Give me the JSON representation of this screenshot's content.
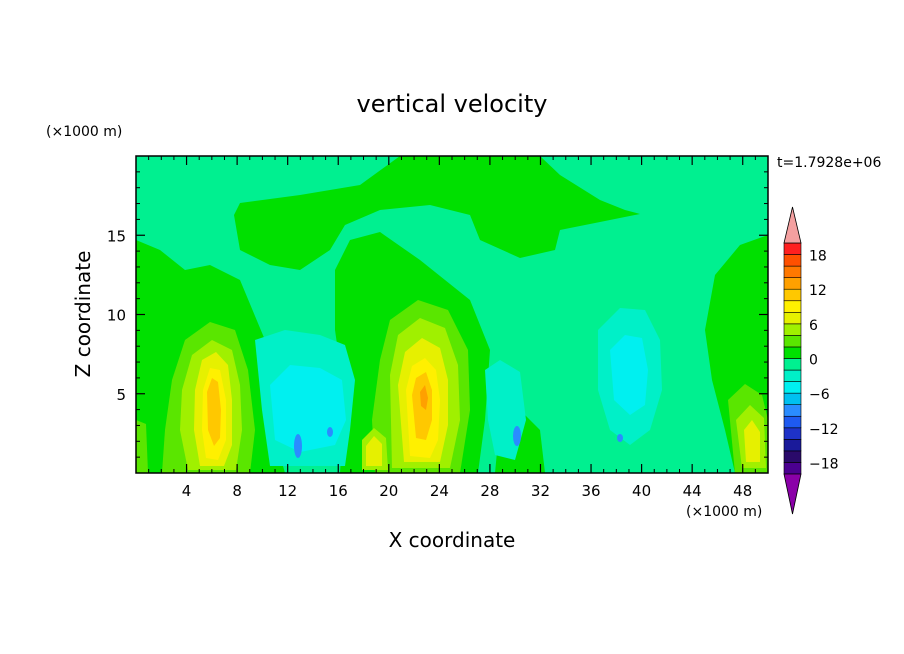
{
  "chart_data": {
    "type": "heatmap",
    "title": "vertical velocity",
    "xlabel": "X coordinate",
    "ylabel": "Z coordinate",
    "x_unit": "(×1000 m)",
    "y_unit": "(×1000 m)",
    "time_label": "t=1.7928e+06",
    "xlim": [
      0,
      50
    ],
    "ylim": [
      0,
      20
    ],
    "x_ticks": [
      4,
      8,
      12,
      16,
      20,
      24,
      28,
      32,
      36,
      40,
      44,
      48
    ],
    "x_tick_labels": [
      "4",
      "8",
      "12",
      "16",
      "20",
      "24",
      "28",
      "32",
      "36",
      "40",
      "44",
      "48"
    ],
    "y_ticks": [
      5,
      10,
      15
    ],
    "y_tick_labels": [
      "5",
      "10",
      "15"
    ],
    "colorbar": {
      "levels": [
        -20,
        -18,
        -16,
        -14,
        -12,
        -10,
        -8,
        -6,
        -4,
        -2,
        0,
        2,
        4,
        6,
        8,
        10,
        12,
        14,
        16,
        18,
        20
      ],
      "labels": [
        "18",
        "12",
        "6",
        "0",
        "−6",
        "−12",
        "−18"
      ],
      "label_values": [
        18,
        12,
        6,
        0,
        -6,
        -12,
        -18
      ],
      "colors": [
        "#4b0090",
        "#2a0a6a",
        "#1a1a9a",
        "#1e32c8",
        "#1e5af0",
        "#2a8cff",
        "#00c0f0",
        "#00f0f0",
        "#00f0c8",
        "#00f090",
        "#00e000",
        "#5ae600",
        "#a0f000",
        "#e6f000",
        "#fff000",
        "#ffc800",
        "#ffa000",
        "#ff7800",
        "#ff5000",
        "#ff2020"
      ],
      "under_color": "#8a00a8",
      "over_color": "#f4a0a0"
    },
    "features": [
      {
        "name": "updraft",
        "x": 6,
        "z": 4.5,
        "peak": 10
      },
      {
        "name": "updraft",
        "x": 22.5,
        "z": 5,
        "peak": 12
      },
      {
        "name": "updraft",
        "x": 19,
        "z": 1.5,
        "peak": 5
      },
      {
        "name": "updraft",
        "x": 49,
        "z": 2.5,
        "peak": 5
      },
      {
        "name": "downdraft",
        "x": 14,
        "z": 4,
        "peak": -6
      },
      {
        "name": "downdraft",
        "x": 38.5,
        "z": 6,
        "peak": -5
      }
    ]
  }
}
